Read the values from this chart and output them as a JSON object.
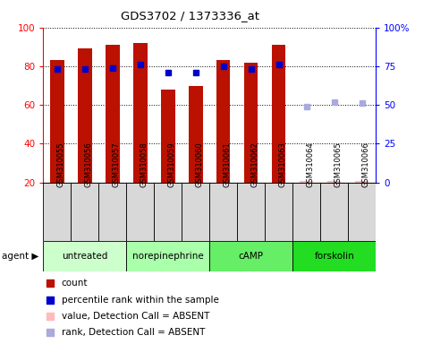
{
  "title": "GDS3702 / 1373336_at",
  "samples": [
    "GSM310055",
    "GSM310056",
    "GSM310057",
    "GSM310058",
    "GSM310059",
    "GSM310060",
    "GSM310061",
    "GSM310062",
    "GSM310063",
    "GSM310064",
    "GSM310065",
    "GSM310066"
  ],
  "bar_bottom": 20,
  "bar_top": [
    83,
    89,
    91,
    92,
    68,
    70,
    83,
    82,
    91,
    20.5,
    20.5,
    20.5
  ],
  "bar_colors_present": "#bb1100",
  "bar_colors_absent": "#ffbbbb",
  "percentile_present": [
    73,
    73,
    74,
    76,
    71,
    71,
    75,
    73,
    76,
    null,
    null,
    null
  ],
  "percentile_absent": [
    null,
    null,
    null,
    null,
    null,
    null,
    null,
    null,
    null,
    49,
    52,
    51
  ],
  "percentile_color_present": "#0000cc",
  "percentile_color_absent": "#aaaadd",
  "agents": [
    {
      "label": "untreated",
      "start": 0,
      "end": 3,
      "color": "#ccffcc"
    },
    {
      "label": "norepinephrine",
      "start": 3,
      "end": 6,
      "color": "#aaffaa"
    },
    {
      "label": "cAMP",
      "start": 6,
      "end": 9,
      "color": "#66ee66"
    },
    {
      "label": "forskolin",
      "start": 9,
      "end": 12,
      "color": "#22dd22"
    }
  ],
  "ylim_left": [
    20,
    100
  ],
  "ylim_right": [
    0,
    100
  ],
  "yticks_left": [
    20,
    40,
    60,
    80,
    100
  ],
  "yticks_right": [
    0,
    25,
    50,
    75,
    100
  ],
  "ytick_labels_right": [
    "0",
    "25",
    "50",
    "75",
    "100%"
  ],
  "bar_width": 0.5,
  "absent_samples": [
    9,
    10,
    11
  ],
  "legend_items": [
    {
      "label": "count",
      "color": "#bb1100"
    },
    {
      "label": "percentile rank within the sample",
      "color": "#0000cc"
    },
    {
      "label": "value, Detection Call = ABSENT",
      "color": "#ffbbbb"
    },
    {
      "label": "rank, Detection Call = ABSENT",
      "color": "#aaaadd"
    }
  ]
}
